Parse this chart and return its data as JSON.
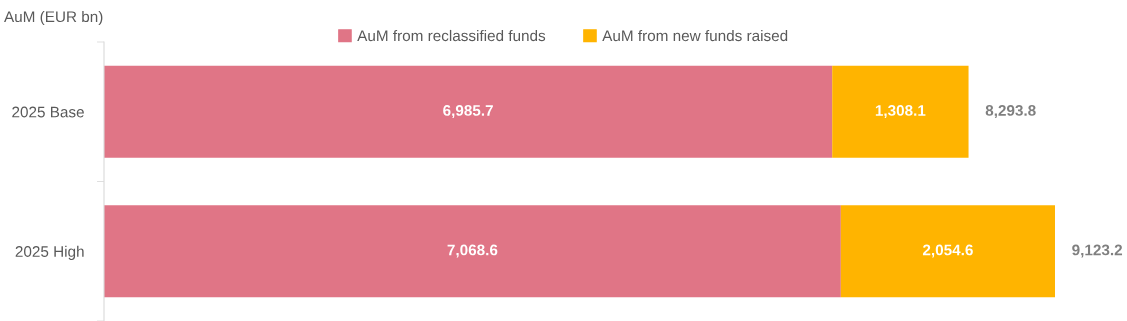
{
  "chart_data": {
    "type": "bar",
    "orientation": "horizontal",
    "stacked": true,
    "ylabel": "AuM (EUR bn)",
    "categories": [
      "2025 Base",
      "2025 High"
    ],
    "series": [
      {
        "name": "AuM from reclassified funds",
        "color": "#e07586",
        "values": [
          6985.7,
          7068.6
        ],
        "value_labels": [
          "6,985.7",
          "7,068.6"
        ]
      },
      {
        "name": "AuM from new funds raised",
        "color": "#ffb400",
        "values": [
          1308.1,
          2054.6
        ],
        "value_labels": [
          "1,308.1",
          "2,054.6"
        ]
      }
    ],
    "totals": [
      "8,293.8",
      "9,123.2"
    ],
    "legend": "top",
    "grid": false,
    "tick_labels": "y"
  }
}
